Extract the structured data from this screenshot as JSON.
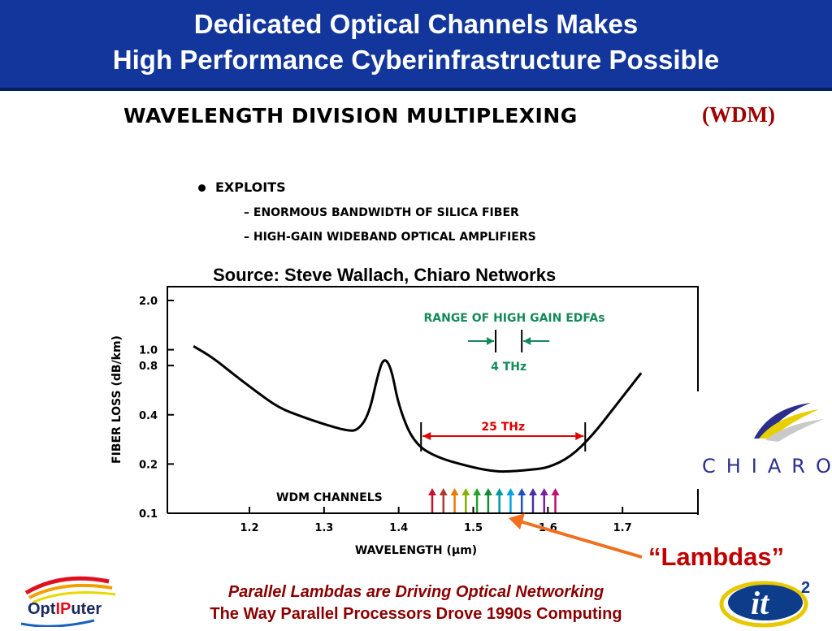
{
  "header": {
    "title_line1": "Dedicated Optical Channels Makes",
    "title_line2": "High Performance Cyberinfrastructure Possible",
    "background_color": "#12369b"
  },
  "wdm": {
    "title": "WAVELENGTH DIVISION MULTIPLEXING",
    "abbrev": "(WDM)",
    "bullet": "EXPLOITS",
    "sub_items": [
      "–  ENORMOUS BANDWIDTH OF SILICA FIBER",
      "–  HIGH-GAIN WIDEBAND OPTICAL AMPLIFIERS"
    ]
  },
  "source": "Source: Steve Wallach, Chiaro Networks",
  "chart_data": {
    "type": "line",
    "xlabel": "WAVELENGTH (µm)",
    "ylabel": "FIBER LOSS (dB/km)",
    "x_ticks": [
      1.2,
      1.3,
      1.4,
      1.5,
      1.6,
      1.7
    ],
    "x_tick_labels": [
      "1.2",
      "1.3",
      "1.4",
      "1.5",
      "1.6",
      "1.7"
    ],
    "y_ticks": [
      0.1,
      0.2,
      0.4,
      0.8,
      1.0,
      2.0
    ],
    "y_tick_labels": [
      "0.1",
      "0.2",
      "0.4",
      "0.8",
      "1.0",
      "2.0"
    ],
    "xlim": [
      1.09,
      1.8
    ],
    "y_scale": "log",
    "grid": false,
    "series": [
      {
        "x": [
          1.125,
          1.15,
          1.18,
          1.21,
          1.24,
          1.27,
          1.3,
          1.33,
          1.345,
          1.36,
          1.372,
          1.38,
          1.39,
          1.4,
          1.42,
          1.45,
          1.5,
          1.53,
          1.55,
          1.58,
          1.6,
          1.63,
          1.66,
          1.69,
          1.725
        ],
        "y": [
          1.05,
          0.9,
          0.7,
          0.55,
          0.44,
          0.39,
          0.35,
          0.32,
          0.32,
          0.4,
          0.7,
          0.9,
          0.78,
          0.45,
          0.27,
          0.22,
          0.19,
          0.18,
          0.18,
          0.185,
          0.19,
          0.22,
          0.3,
          0.45,
          0.72
        ],
        "color": "#000000"
      }
    ],
    "annotations": {
      "edfa_label": "RANGE OF HIGH GAIN EDFAs",
      "edfa_range_label": "4 THz",
      "edfa_range": [
        1.53,
        1.565
      ],
      "wide_range_label": "25 THz",
      "wide_range": [
        1.43,
        1.65
      ],
      "wdm_channels_label": "WDM CHANNELS",
      "wdm_channel_wavelengths": [
        1.445,
        1.46,
        1.475,
        1.49,
        1.505,
        1.52,
        1.535,
        1.55,
        1.565,
        1.58,
        1.595,
        1.61
      ],
      "wdm_channel_colors": [
        "#c8102e",
        "#b03a2e",
        "#e87a00",
        "#88b000",
        "#2aa02a",
        "#138a3a",
        "#0097a7",
        "#00a0e0",
        "#1e50c0",
        "#4a2fa0",
        "#7a1fa0",
        "#c01070"
      ],
      "edfa_color": "#138a5a",
      "wide_range_color": "#e00000"
    }
  },
  "chiaro": {
    "text": "CHIARO"
  },
  "lambdas": {
    "label": "“Lambdas”",
    "arrow_color": "#f07020"
  },
  "footer": {
    "line1": "Parallel Lambdas are Driving Optical Networking",
    "line2": "The Way Parallel Processors Drove 1990s Computing"
  },
  "logos": {
    "optiputer_part1": "Opt",
    "optiputer_part2": "IP",
    "optiputer_part3": "uter",
    "it_main": "it",
    "it_super": "2"
  }
}
